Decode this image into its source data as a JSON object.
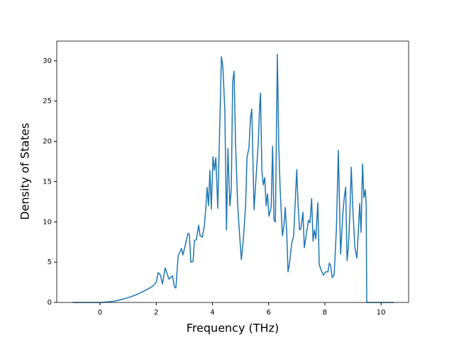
{
  "chart_data": {
    "type": "line",
    "xlabel": "Frequency (THz)",
    "ylabel": "Density of States",
    "x": [
      -0.97,
      0,
      0.25,
      0.5,
      0.75,
      1,
      1.25,
      1.5,
      1.75,
      1.9,
      2.0,
      2.07,
      2.15,
      2.22,
      2.32,
      2.45,
      2.58,
      2.65,
      2.7,
      2.78,
      2.9,
      2.95,
      3.06,
      3.13,
      3.18,
      3.23,
      3.31,
      3.36,
      3.43,
      3.51,
      3.56,
      3.64,
      3.71,
      3.76,
      3.81,
      3.86,
      3.91,
      3.96,
      4.02,
      4.07,
      4.12,
      4.19,
      4.32,
      4.37,
      4.44,
      4.5,
      4.55,
      4.62,
      4.67,
      4.72,
      4.77,
      4.82,
      4.9,
      4.97,
      5.03,
      5.1,
      5.18,
      5.23,
      5.3,
      5.35,
      5.4,
      5.48,
      5.56,
      5.63,
      5.68,
      5.71,
      5.76,
      5.81,
      5.86,
      5.91,
      5.96,
      6.01,
      6.09,
      6.14,
      6.19,
      6.24,
      6.31,
      6.36,
      6.41,
      6.49,
      6.54,
      6.59,
      6.64,
      6.69,
      6.74,
      6.82,
      6.89,
      6.94,
      7.0,
      7.05,
      7.1,
      7.15,
      7.22,
      7.27,
      7.35,
      7.42,
      7.47,
      7.53,
      7.58,
      7.63,
      7.68,
      7.75,
      7.8,
      7.88,
      7.95,
      8.03,
      8.11,
      8.16,
      8.21,
      8.26,
      8.33,
      8.41,
      8.48,
      8.56,
      8.64,
      8.69,
      8.74,
      8.79,
      8.84,
      8.89,
      8.94,
      8.99,
      9.07,
      9.14,
      9.19,
      9.24,
      9.29,
      9.34,
      9.39,
      9.44,
      9.47,
      9.49,
      10.45
    ],
    "values": [
      0,
      0,
      0.05,
      0.15,
      0.35,
      0.6,
      0.9,
      1.3,
      1.75,
      2.1,
      2.5,
      3.7,
      3.4,
      2.3,
      4.3,
      2.9,
      3.3,
      1.9,
      1.8,
      5.8,
      6.7,
      5.9,
      7.5,
      8.6,
      8.4,
      5.0,
      5.1,
      7.7,
      7.8,
      9.6,
      8.3,
      8.1,
      9.5,
      11.5,
      14.3,
      12.0,
      16.4,
      11.6,
      18.1,
      16.4,
      18.0,
      11.7,
      30.5,
      29.3,
      24.0,
      9.0,
      19.1,
      12.0,
      14.0,
      27.4,
      28.7,
      20.0,
      12.0,
      8.2,
      5.3,
      7.8,
      12.0,
      18.0,
      19.2,
      22.8,
      24.0,
      11.5,
      16.0,
      19.7,
      24.5,
      26.0,
      16.3,
      14.6,
      15.5,
      12.0,
      13.5,
      10.7,
      11.8,
      19.4,
      10.2,
      10.0,
      30.8,
      19.5,
      14.0,
      8.3,
      9.4,
      11.8,
      9.0,
      3.8,
      4.8,
      7.3,
      8.3,
      12.0,
      16.5,
      12.0,
      9.0,
      9.2,
      11.2,
      6.8,
      8.7,
      10.2,
      9.9,
      12.9,
      7.6,
      9.0,
      7.9,
      12.4,
      4.7,
      3.9,
      3.4,
      3.8,
      3.8,
      4.9,
      4.5,
      3.1,
      3.4,
      9.0,
      18.9,
      6.0,
      11.0,
      13.0,
      14.3,
      5.2,
      7.0,
      11.0,
      16.8,
      12.0,
      6.8,
      5.5,
      8.7,
      12.3,
      8.7,
      17.2,
      13.0,
      14.0,
      12.3,
      0,
      0
    ],
    "color": "#1f77b4",
    "xlim": [
      -1.54,
      10.98
    ],
    "xticks": [
      0,
      2,
      4,
      6,
      8,
      10
    ],
    "ylim": [
      0,
      32.45
    ],
    "yticks": [
      0,
      5,
      10,
      15,
      20,
      25,
      30
    ]
  }
}
